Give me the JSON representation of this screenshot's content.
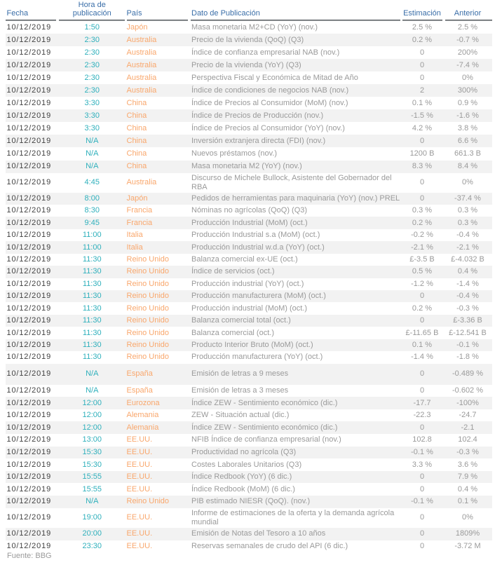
{
  "colors": {
    "header_blue": "#3a6ea8",
    "rule_gray": "#595e62",
    "date_dark": "#424242",
    "time_teal": "#2fb0bc",
    "country_orange": "#f9a76c",
    "text_gray": "#9a9a9a",
    "stripe_gray": "#f2f2f2",
    "background": "#ffffff"
  },
  "table": {
    "columns": [
      {
        "key": "fecha",
        "label": "Fecha"
      },
      {
        "key": "hora",
        "label": "Hora de publicación"
      },
      {
        "key": "pais",
        "label": "País"
      },
      {
        "key": "dato",
        "label": "Dato de Publicación"
      },
      {
        "key": "estimacion",
        "label": "Estimación"
      },
      {
        "key": "anterior",
        "label": "Anterior"
      }
    ],
    "rows": [
      {
        "fecha": "10/12/2019",
        "hora": "1:50",
        "pais": "Japón",
        "dato": "Masa monetaria M2+CD (YoY) (nov.)",
        "estimacion": "2.5 %",
        "anterior": "2.5 %"
      },
      {
        "fecha": "10/12/2019",
        "hora": "2:30",
        "pais": "Australia",
        "dato": "Precio de la vivienda (QoQ) (Q3)",
        "estimacion": "0.2 %",
        "anterior": "-0.7 %"
      },
      {
        "fecha": "10/12/2019",
        "hora": "2:30",
        "pais": "Australia",
        "dato": "Índice de confianza empresarial NAB (nov.)",
        "estimacion": "0",
        "anterior": "200%"
      },
      {
        "fecha": "10/12/2019",
        "hora": "2:30",
        "pais": "Australia",
        "dato": "Precio de la vivienda (YoY) (Q3)",
        "estimacion": "0",
        "anterior": "-7.4 %"
      },
      {
        "fecha": "10/12/2019",
        "hora": "2:30",
        "pais": "Australia",
        "dato": "Perspectiva Fiscal y Económica de Mitad de Año",
        "estimacion": "0",
        "anterior": "0%"
      },
      {
        "fecha": "10/12/2019",
        "hora": "2:30",
        "pais": "Australia",
        "dato": "Índice de condiciones de negocios NAB (nov.)",
        "estimacion": "2",
        "anterior": "300%"
      },
      {
        "fecha": "10/12/2019",
        "hora": "3:30",
        "pais": "China",
        "dato": "Índice de Precios al Consumidor (MoM) (nov.)",
        "estimacion": "0.1 %",
        "anterior": "0.9 %"
      },
      {
        "fecha": "10/12/2019",
        "hora": "3:30",
        "pais": "China",
        "dato": "Índice de Precios de Producción (nov.)",
        "estimacion": "-1.5 %",
        "anterior": "-1.6 %"
      },
      {
        "fecha": "10/12/2019",
        "hora": "3:30",
        "pais": "China",
        "dato": "Índice de Precios al Consumidor (YoY) (nov.)",
        "estimacion": "4.2 %",
        "anterior": "3.8 %"
      },
      {
        "fecha": "10/12/2019",
        "hora": "N/A",
        "pais": "China",
        "dato": "Inversión extranjera directa (FDI) (nov.)",
        "estimacion": "0",
        "anterior": "6.6 %"
      },
      {
        "fecha": "10/12/2019",
        "hora": "N/A",
        "pais": "China",
        "dato": "Nuevos préstamos (nov.)",
        "estimacion": "1200 B",
        "anterior": "661.3 B"
      },
      {
        "fecha": "10/12/2019",
        "hora": "N/A",
        "pais": "China",
        "dato": "Masa monetaria M2 (YoY) (nov.)",
        "estimacion": "8.3 %",
        "anterior": "8.4 %"
      },
      {
        "fecha": "10/12/2019",
        "hora": "4:45",
        "pais": "Australia",
        "dato": "Discurso de Michele Bullock, Asistente del Gobernador del RBA",
        "estimacion": "0",
        "anterior": "0%"
      },
      {
        "fecha": "10/12/2019",
        "hora": "8:00",
        "pais": "Japón",
        "dato": "Pedidos de herramientas para maquinaria (YoY) (nov.) PREL",
        "estimacion": "0",
        "anterior": "-37.4 %"
      },
      {
        "fecha": "10/12/2019",
        "hora": "8:30",
        "pais": "Francia",
        "dato": "Nóminas no agrícolas (QoQ) (Q3)",
        "estimacion": "0.3 %",
        "anterior": "0.3 %"
      },
      {
        "fecha": "10/12/2019",
        "hora": "9:45",
        "pais": "Francia",
        "dato": "Producción Industrial (MoM) (oct.)",
        "estimacion": "0.2 %",
        "anterior": "0.3 %"
      },
      {
        "fecha": "10/12/2019",
        "hora": "11:00",
        "pais": "Italia",
        "dato": "Producción Industrial s.a (MoM) (oct.)",
        "estimacion": "-0.2 %",
        "anterior": "-0.4 %"
      },
      {
        "fecha": "10/12/2019",
        "hora": "11:00",
        "pais": "Italia",
        "dato": "Producción Industrial w.d.a (YoY) (oct.)",
        "estimacion": "-2.1 %",
        "anterior": "-2.1 %"
      },
      {
        "fecha": "10/12/2019",
        "hora": "11:30",
        "pais": "Reino Unido",
        "dato": "Balanza comercial ex-UE (oct.)",
        "estimacion": "£-3.5 B",
        "anterior": "£-4.032 B"
      },
      {
        "fecha": "10/12/2019",
        "hora": "11:30",
        "pais": "Reino Unido",
        "dato": "Índice de servicios (oct.)",
        "estimacion": "0.5 %",
        "anterior": "0.4 %"
      },
      {
        "fecha": "10/12/2019",
        "hora": "11:30",
        "pais": "Reino Unido",
        "dato": "Producción industrial (YoY) (oct.)",
        "estimacion": "-1.2 %",
        "anterior": "-1.4 %"
      },
      {
        "fecha": "10/12/2019",
        "hora": "11:30",
        "pais": "Reino Unido",
        "dato": "Producción manufacturera (MoM) (oct.)",
        "estimacion": "0",
        "anterior": "-0.4 %"
      },
      {
        "fecha": "10/12/2019",
        "hora": "11:30",
        "pais": "Reino Unido",
        "dato": "Producción industrial (MoM) (oct.)",
        "estimacion": "0.2 %",
        "anterior": "-0.3 %"
      },
      {
        "fecha": "10/12/2019",
        "hora": "11:30",
        "pais": "Reino Unido",
        "dato": "Balanza comercial total (oct.)",
        "estimacion": "0",
        "anterior": "£-3.36 B"
      },
      {
        "fecha": "10/12/2019",
        "hora": "11:30",
        "pais": "Reino Unido",
        "dato": "Balanza comercial (oct.)",
        "estimacion": "£-11.65 B",
        "anterior": "£-12.541 B"
      },
      {
        "fecha": "10/12/2019",
        "hora": "11:30",
        "pais": "Reino Unido",
        "dato": "Producto Interior Bruto (MoM) (oct.)",
        "estimacion": "0.1 %",
        "anterior": "-0.1 %"
      },
      {
        "fecha": "10/12/2019",
        "hora": "11:30",
        "pais": "Reino Unido",
        "dato": "Producción manufacturera (YoY) (oct.)",
        "estimacion": "-1.4 %",
        "anterior": "-1.8 %"
      },
      {
        "fecha": "10/12/2019",
        "hora": "N/A",
        "pais": "España",
        "dato": "Emisión de letras a 9 meses",
        "estimacion": "0",
        "anterior": "-0.489 %",
        "tall": true
      },
      {
        "fecha": "10/12/2019",
        "hora": "N/A",
        "pais": "España",
        "dato": "Emisión de letras a 3 meses",
        "estimacion": "0",
        "anterior": "-0.602 %"
      },
      {
        "fecha": "10/12/2019",
        "hora": "12:00",
        "pais": "Eurozona",
        "dato": "Índice ZEW - Sentimiento económico (dic.)",
        "estimacion": "-17.7",
        "anterior": "-100%"
      },
      {
        "fecha": "10/12/2019",
        "hora": "12:00",
        "pais": "Alemania",
        "dato": "ZEW - Situación actual (dic.)",
        "estimacion": "-22.3",
        "anterior": "-24.7"
      },
      {
        "fecha": "10/12/2019",
        "hora": "12:00",
        "pais": "Alemania",
        "dato": "Índice ZEW - Sentimiento económico (dic.)",
        "estimacion": "0",
        "anterior": "-2.1"
      },
      {
        "fecha": "10/12/2019",
        "hora": "13:00",
        "pais": "EE.UU.",
        "dato": "NFIB Índice de confianza empresarial (nov.)",
        "estimacion": "102.8",
        "anterior": "102.4"
      },
      {
        "fecha": "10/12/2019",
        "hora": "15:30",
        "pais": "EE.UU.",
        "dato": "Productividad no agrícola (Q3)",
        "estimacion": "-0.1 %",
        "anterior": "-0.3 %"
      },
      {
        "fecha": "10/12/2019",
        "hora": "15:30",
        "pais": "EE.UU.",
        "dato": "Costes Laborales Unitarios (Q3)",
        "estimacion": "3.3 %",
        "anterior": "3.6 %"
      },
      {
        "fecha": "10/12/2019",
        "hora": "15:55",
        "pais": "EE.UU.",
        "dato": "Índice Redbook (YoY) (6 dic.)",
        "estimacion": "0",
        "anterior": "7.9 %"
      },
      {
        "fecha": "10/12/2019",
        "hora": "15:55",
        "pais": "EE.UU.",
        "dato": "Índice Redbook (MoM) (6 dic.)",
        "estimacion": "0",
        "anterior": "0.4 %"
      },
      {
        "fecha": "10/12/2019",
        "hora": "N/A",
        "pais": "Reino Unido",
        "dato": "PIB estimado NIESR (QoQ). (nov.)",
        "estimacion": "-0.1 %",
        "anterior": "0.1 %"
      },
      {
        "fecha": "10/12/2019",
        "hora": "19:00",
        "pais": "EE.UU.",
        "dato": "Informe de estimaciones de la oferta y la demanda agrícola mundial",
        "estimacion": "0",
        "anterior": "0%"
      },
      {
        "fecha": "10/12/2019",
        "hora": "20:00",
        "pais": "EE.UU.",
        "dato": "Emisión de Notas del Tesoro a 10 años",
        "estimacion": "0",
        "anterior": "1809%"
      },
      {
        "fecha": "10/12/2019",
        "hora": "23:30",
        "pais": "EE.UU.",
        "dato": "Reservas semanales de crudo del API (6 dic.)",
        "estimacion": "0",
        "anterior": "-3.72 M"
      }
    ]
  },
  "footer": {
    "source_label": "Fuente: BBG"
  }
}
